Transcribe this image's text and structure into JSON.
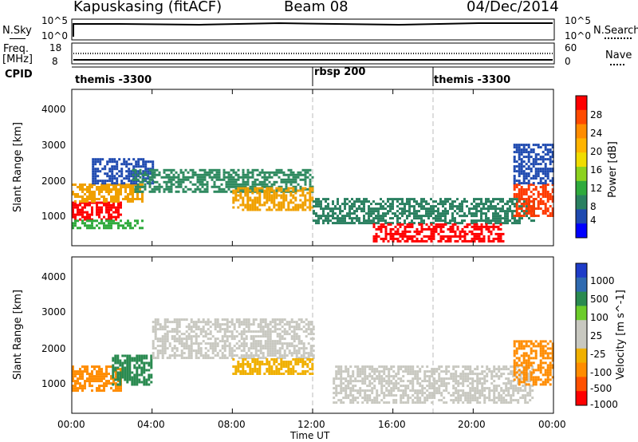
{
  "header": {
    "station": "Kapuskasing (fitACF)",
    "beam": "Beam 08",
    "date": "04/Dec/2014"
  },
  "top_panels": {
    "nsky_label": "N.Sky",
    "nsky_ticks": [
      "10^5",
      "10^0"
    ],
    "nsearch_label": "N.Search",
    "nsearch_ticks": [
      "10^5",
      "10^0"
    ],
    "freq_label": "Freq.",
    "freq_unit": "[MHz]",
    "freq_ticks": [
      "18",
      "8"
    ],
    "nave_label": "Nave",
    "nave_ticks": [
      "60",
      "0"
    ],
    "cpid_label": "CPID"
  },
  "cpid_segments": [
    {
      "label": "themis -3300",
      "start_hour": 0
    },
    {
      "label": "rbsp 200",
      "start_hour": 12
    },
    {
      "label": "themis -3300",
      "start_hour": 18
    }
  ],
  "axes": {
    "ylabel": "Slant Range [km]",
    "y_ticks": [
      "1000",
      "2000",
      "3000",
      "4000"
    ],
    "x_ticks": [
      "00:00",
      "04:00",
      "08:00",
      "12:00",
      "16:00",
      "20:00",
      "00:00"
    ],
    "xlabel": "Time UT"
  },
  "power_scale": {
    "label": "Power [dB]",
    "ticks": [
      "28",
      "24",
      "20",
      "16",
      "12",
      "8",
      "4"
    ],
    "colors": [
      "#ff0000",
      "#ff4a00",
      "#ff8c00",
      "#ffb400",
      "#f0dc00",
      "#8cd21e",
      "#2faa3c",
      "#2a8060",
      "#1f4ab0",
      "#0000ff"
    ]
  },
  "velocity_scale": {
    "label": "Velocity [m s^-1]",
    "ticks": [
      "1000",
      "500",
      "100",
      "25",
      "-25",
      "-100",
      "-500",
      "-1000"
    ],
    "colors": [
      "#1e3cc8",
      "#2f6ab0",
      "#2a8a50",
      "#6ccc2a",
      "#c8c8c0",
      "#c8c8c0",
      "#f0b000",
      "#ff8c00",
      "#ff5000",
      "#ff0000"
    ]
  },
  "chart_data": {
    "type": "heatmap",
    "x_range_hours": [
      0,
      24
    ],
    "y_range_km": [
      180,
      4500
    ],
    "power_regions": [
      {
        "t0": 0,
        "t1": 2.5,
        "r0": 900,
        "r1": 1400,
        "color": "#ff0000"
      },
      {
        "t0": 0,
        "t1": 3.5,
        "r0": 1400,
        "r1": 1900,
        "color": "#f0a000"
      },
      {
        "t0": 0,
        "t1": 3.5,
        "r0": 700,
        "r1": 900,
        "color": "#2faa3c"
      },
      {
        "t0": 1,
        "t1": 4,
        "r0": 1900,
        "r1": 2600,
        "color": "#1f4ab0"
      },
      {
        "t0": 3,
        "t1": 12,
        "r0": 1700,
        "r1": 2300,
        "color": "#2f8a60"
      },
      {
        "t0": 8,
        "t1": 12,
        "r0": 1200,
        "r1": 1800,
        "color": "#f0a000"
      },
      {
        "t0": 12,
        "t1": 23,
        "r0": 800,
        "r1": 1500,
        "color": "#2a8060"
      },
      {
        "t0": 15,
        "t1": 21.5,
        "r0": 300,
        "r1": 800,
        "color": "#ff0000"
      },
      {
        "t0": 22,
        "t1": 24,
        "r0": 1000,
        "r1": 1900,
        "color": "#ff3a00"
      },
      {
        "t0": 22,
        "t1": 24,
        "r0": 1900,
        "r1": 3000,
        "color": "#1f4ab0"
      }
    ],
    "velocity_regions": [
      {
        "t0": 0,
        "t1": 2.5,
        "r0": 800,
        "r1": 1500,
        "color": "#ff8c00"
      },
      {
        "t0": 2,
        "t1": 4,
        "r0": 1000,
        "r1": 1800,
        "color": "#2a8a50"
      },
      {
        "t0": 4,
        "t1": 12,
        "r0": 1700,
        "r1": 2800,
        "color": "#c8c8c0"
      },
      {
        "t0": 8,
        "t1": 12,
        "r0": 1300,
        "r1": 1700,
        "color": "#f0b000"
      },
      {
        "t0": 13,
        "t1": 23,
        "r0": 500,
        "r1": 1500,
        "color": "#c8c8c0"
      },
      {
        "t0": 22,
        "t1": 24,
        "r0": 1000,
        "r1": 2200,
        "color": "#ff8c00"
      }
    ]
  }
}
